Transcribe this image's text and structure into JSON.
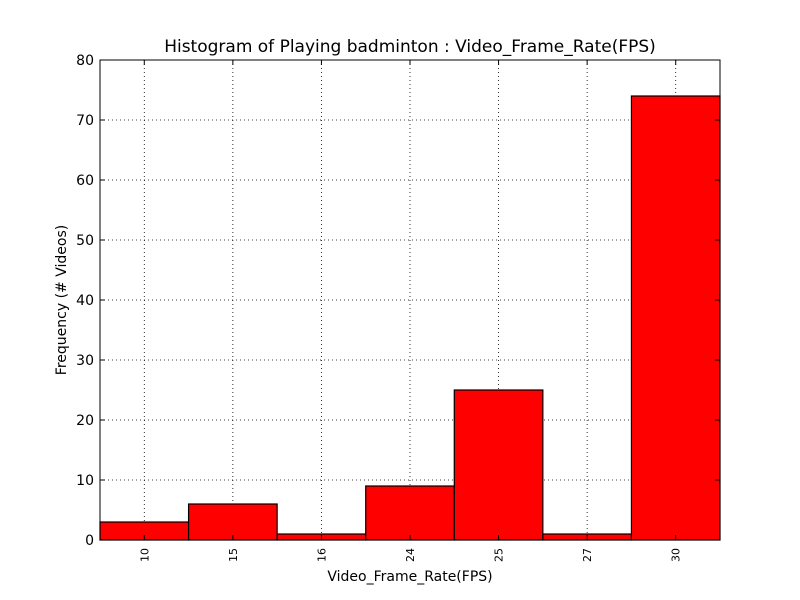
{
  "chart_data": {
    "type": "bar",
    "title": "Histogram of Playing badminton : Video_Frame_Rate(FPS)",
    "xlabel": "Video_Frame_Rate(FPS)",
    "ylabel": "Frequency (# Videos)",
    "categories": [
      "10",
      "15",
      "16",
      "24",
      "25",
      "27",
      "30"
    ],
    "values": [
      3,
      6,
      1,
      9,
      25,
      1,
      74
    ],
    "ylim": [
      0,
      80
    ],
    "yticks": [
      "0",
      "10",
      "20",
      "30",
      "40",
      "50",
      "60",
      "70",
      "80"
    ],
    "grid": true,
    "bar_color": "#ff0000",
    "edge_color": "#000000"
  }
}
